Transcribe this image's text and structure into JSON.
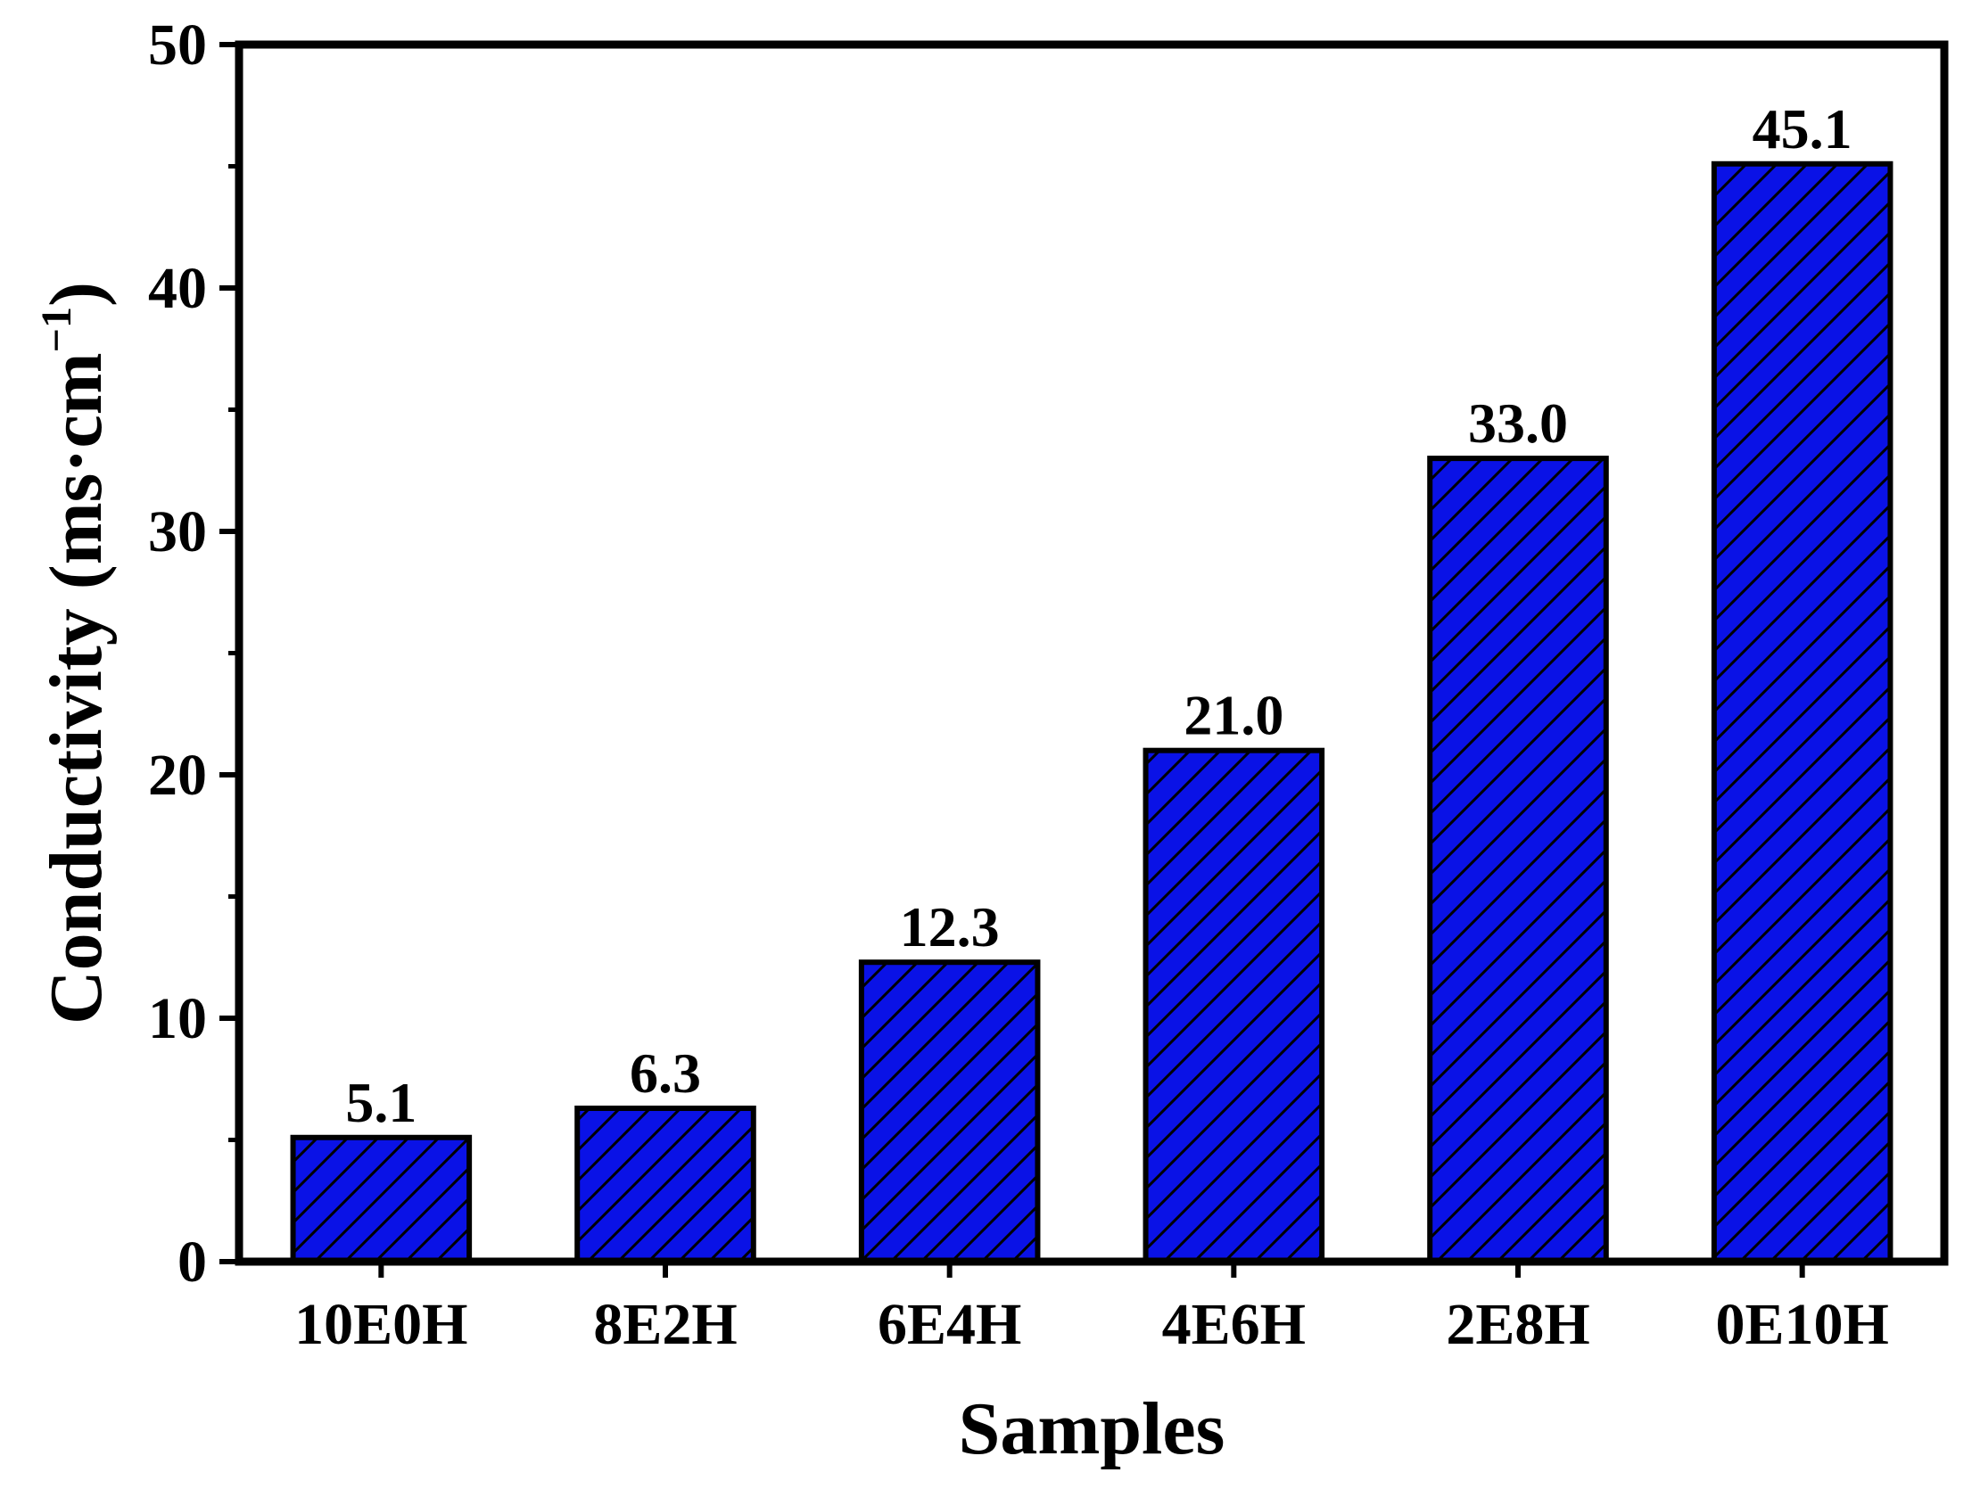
{
  "chart_data": {
    "type": "bar",
    "categories": [
      "10E0H",
      "8E2H",
      "6E4H",
      "4E6H",
      "2E8H",
      "0E10H"
    ],
    "values": [
      5.1,
      6.3,
      12.3,
      21.0,
      33.0,
      45.1
    ],
    "data_labels": [
      "5.1",
      "6.3",
      "12.3",
      "21.0",
      "33.0",
      "45.1"
    ],
    "title": "",
    "xlabel": "Samples",
    "ylabel": {
      "text": "Conductivity (ms·cm",
      "superscript": "−1",
      "suffix": ")"
    },
    "ylim": [
      0,
      50
    ],
    "yticks": [
      0,
      10,
      20,
      30,
      40,
      50
    ],
    "ytick_labels": [
      "0",
      "10",
      "20",
      "30",
      "40",
      "50"
    ],
    "grid": false,
    "legend": "none",
    "colors": {
      "bar_fill": "#0a12e6",
      "bar_edge": "#000000",
      "hatch": "#000000",
      "axes": "#000000"
    },
    "hatch_pattern": "diagonal"
  }
}
